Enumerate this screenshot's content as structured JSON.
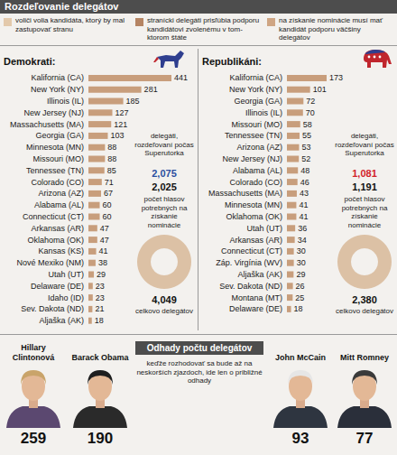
{
  "header": {
    "title": "Rozdeľovanie delegátov",
    "notes": [
      "voliči volia kandidáta, ktorý by mal zastupovať stranu",
      "stranícki delegáti prisľúbia podporu kandidátovi zvolenému v tom-ktorom štáte",
      "na získanie nominácie musí mať kandidát podporu väčšiny delegátov"
    ]
  },
  "chart_data": [
    {
      "type": "bar",
      "title": "Demokrati:",
      "orientation": "horizontal",
      "data_labels": true,
      "tick_labels": "y",
      "color": "#c89e7c",
      "categories": [
        "Kalifornia (CA)",
        "New York (NY)",
        "Illinois (IL)",
        "New Jersey (NJ)",
        "Massachusetts (MA)",
        "Georgia (GA)",
        "Minnesota (MN)",
        "Missouri (MO)",
        "Tennessee (TN)",
        "Colorado (CO)",
        "Arizona (AZ)",
        "Alabama (AL)",
        "Connecticut (CT)",
        "Arkansas (AR)",
        "Oklahoma (OK)",
        "Kansas (KS)",
        "Nové Mexiko (NM)",
        "Utah (UT)",
        "Delaware (DE)",
        "Idaho (ID)",
        "Sev. Dakota (ND)",
        "Aljaška (AK)"
      ],
      "values": [
        441,
        281,
        185,
        127,
        121,
        103,
        88,
        88,
        85,
        71,
        67,
        60,
        60,
        47,
        47,
        41,
        38,
        29,
        23,
        23,
        21,
        18
      ]
    },
    {
      "type": "bar",
      "title": "Republikáni:",
      "orientation": "horizontal",
      "data_labels": true,
      "tick_labels": "y",
      "color": "#c89e7c",
      "categories": [
        "Kalifornia (CA)",
        "New York (NY)",
        "Georgia (GA)",
        "Illinois (IL)",
        "Missouri (MO)",
        "Tennessee (TN)",
        "Arizona (AZ)",
        "New Jersey (NJ)",
        "Alabama (AL)",
        "Colorado (CO)",
        "Massachusetts (MA)",
        "Minnesota (MN)",
        "Oklahoma (OK)",
        "Utah (UT)",
        "Arkansas (AR)",
        "Connecticut (CT)",
        "Záp. Virgínia (WV)",
        "Aljaška (AK)",
        "Sev. Dakota (ND)",
        "Montana (MT)",
        "Delaware (DE)"
      ],
      "values": [
        173,
        101,
        72,
        70,
        58,
        55,
        53,
        52,
        48,
        46,
        43,
        41,
        41,
        36,
        34,
        30,
        30,
        29,
        26,
        25,
        18
      ]
    },
    {
      "type": "pie",
      "categories": [
        "delegáti, rozdeľovaní počas Superutorka"
      ],
      "values": [
        2075
      ],
      "value_labels": [
        "2,075"
      ],
      "needed": {
        "value": 2025,
        "label": "2,025",
        "text": "počet hlasov potrebných na získanie nominácie"
      },
      "total": {
        "value": 4049,
        "label": "4,049",
        "text": "celkovo delegátov"
      },
      "colors": [
        "#8b5a3b",
        "#dcc1a5"
      ]
    },
    {
      "type": "pie",
      "categories": [
        "delegáti, rozdeľovaní počas Superutorka"
      ],
      "values": [
        1081
      ],
      "value_labels": [
        "1,081"
      ],
      "needed": {
        "value": 1191,
        "label": "1,191",
        "text": "počet hlasov potrebných na získanie nominácie"
      },
      "total": {
        "value": 2380,
        "label": "2,380",
        "text": "celkovo delegátov"
      },
      "colors": [
        "#8b5a3b",
        "#dcc1a5"
      ]
    }
  ],
  "estimates": {
    "title": "Odhady počtu delegátov",
    "subtitle": "keďže rozhodovať sa bude až na neskorších zjazdoch, ide len o približné odhady",
    "candidates": [
      {
        "name": "Hillary Clintonová",
        "delegates": 259
      },
      {
        "name": "Barack Obama",
        "delegates": 190
      },
      {
        "name": "John McCain",
        "delegates": 93
      },
      {
        "name": "Mitt Romney",
        "delegates": 77
      }
    ]
  }
}
